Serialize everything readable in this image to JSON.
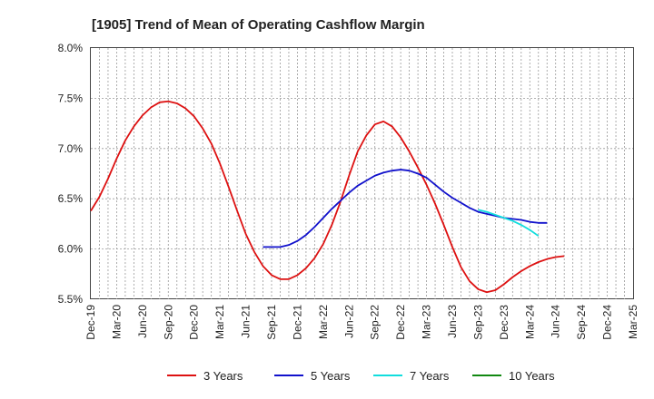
{
  "chart_data": {
    "type": "line",
    "title": "[1905]  Trend of Mean of Operating Cashflow Margin",
    "xlabel": "",
    "ylabel": "",
    "y_unit": "%",
    "ylim": [
      5.5,
      8.0
    ],
    "yticks": [
      "8.0%",
      "7.5%",
      "7.0%",
      "6.5%",
      "6.0%",
      "5.5%"
    ],
    "ytick_values": [
      8.0,
      7.5,
      7.0,
      6.5,
      6.0,
      5.5
    ],
    "x_categories": [
      "Dec-19",
      "Mar-20",
      "Jun-20",
      "Sep-20",
      "Dec-20",
      "Mar-21",
      "Jun-21",
      "Sep-21",
      "Dec-21",
      "Mar-22",
      "Jun-22",
      "Sep-22",
      "Dec-22",
      "Mar-23",
      "Jun-23",
      "Sep-23",
      "Dec-23",
      "Mar-24",
      "Jun-24",
      "Sep-24",
      "Dec-24",
      "Mar-25"
    ],
    "x_start": "Dec-19",
    "x_months": [
      "Dec-19",
      "Jan-20",
      "Feb-20",
      "Mar-20",
      "Apr-20",
      "May-20",
      "Jun-20",
      "Jul-20",
      "Aug-20",
      "Sep-20",
      "Oct-20",
      "Nov-20",
      "Dec-20",
      "Jan-21",
      "Feb-21",
      "Mar-21",
      "Apr-21",
      "May-21",
      "Jun-21",
      "Jul-21",
      "Aug-21",
      "Sep-21",
      "Oct-21",
      "Nov-21",
      "Dec-21",
      "Jan-22",
      "Feb-22",
      "Mar-22",
      "Apr-22",
      "May-22",
      "Jun-22",
      "Jul-22",
      "Aug-22",
      "Sep-22",
      "Oct-22",
      "Nov-22",
      "Dec-22",
      "Jan-23",
      "Feb-23",
      "Mar-23",
      "Apr-23",
      "May-23",
      "Jun-23",
      "Jul-23",
      "Aug-23",
      "Sep-23",
      "Oct-23",
      "Nov-23",
      "Dec-23",
      "Jan-24",
      "Feb-24",
      "Mar-24",
      "Apr-24",
      "May-24",
      "Jun-24",
      "Jul-24",
      "Aug-24",
      "Sep-24",
      "Oct-24",
      "Nov-24",
      "Dec-24",
      "Jan-25",
      "Feb-25",
      "Mar-25"
    ],
    "grid": true,
    "legend_position": "bottom",
    "series": [
      {
        "name": "3 Years",
        "color": "#dd1111",
        "start": "Dec-19",
        "values": [
          6.38,
          6.52,
          6.7,
          6.9,
          7.08,
          7.22,
          7.33,
          7.41,
          7.46,
          7.47,
          7.45,
          7.4,
          7.32,
          7.2,
          7.05,
          6.85,
          6.62,
          6.38,
          6.15,
          5.97,
          5.83,
          5.74,
          5.7,
          5.7,
          5.74,
          5.81,
          5.91,
          6.05,
          6.24,
          6.47,
          6.73,
          6.97,
          7.13,
          7.24,
          7.27,
          7.22,
          7.11,
          6.97,
          6.81,
          6.64,
          6.45,
          6.24,
          6.02,
          5.82,
          5.68,
          5.6,
          5.57,
          5.59,
          5.65,
          5.72,
          5.78,
          5.83,
          5.87,
          5.9,
          5.92,
          5.93
        ]
      },
      {
        "name": "5 Years",
        "color": "#1111cc",
        "start": "Aug-21",
        "values": [
          6.02,
          6.02,
          6.02,
          6.04,
          6.08,
          6.14,
          6.22,
          6.31,
          6.4,
          6.48,
          6.56,
          6.63,
          6.68,
          6.73,
          6.76,
          6.78,
          6.79,
          6.78,
          6.75,
          6.71,
          6.64,
          6.57,
          6.51,
          6.46,
          6.41,
          6.37,
          6.35,
          6.33,
          6.31,
          6.3,
          6.29,
          6.27,
          6.26,
          6.26
        ]
      },
      {
        "name": "7 Years",
        "color": "#11dddd",
        "start": "Sep-23",
        "values": [
          6.39,
          6.37,
          6.34,
          6.31,
          6.28,
          6.24,
          6.19,
          6.13
        ]
      },
      {
        "name": "10 Years",
        "color": "#118811",
        "start": "Sep-23",
        "values": []
      }
    ]
  }
}
